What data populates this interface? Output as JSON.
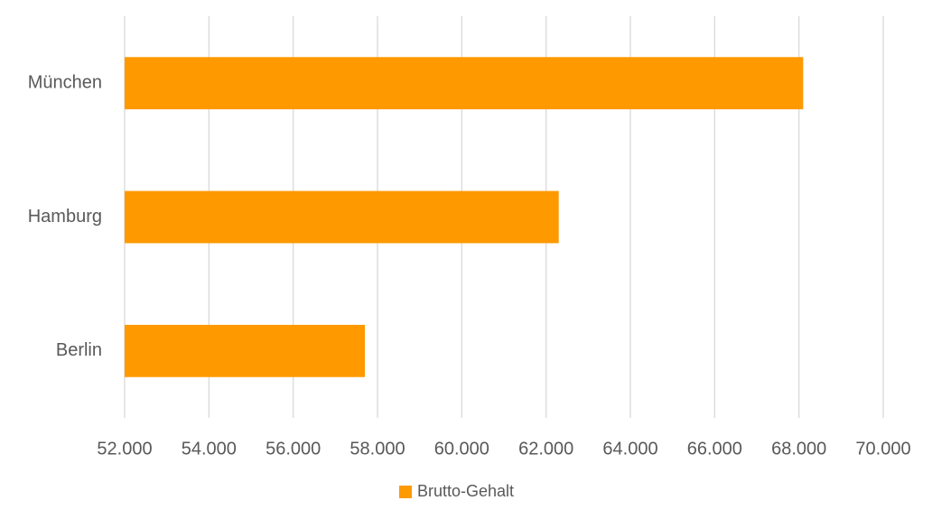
{
  "chart_data": {
    "type": "bar",
    "orientation": "horizontal",
    "categories": [
      "München",
      "Hamburg",
      "Berlin"
    ],
    "series": [
      {
        "name": "Brutto-Gehalt",
        "color": "#ff9900",
        "values": [
          68100,
          62300,
          57700
        ]
      }
    ],
    "xlim": [
      52000,
      70000
    ],
    "xticks": [
      {
        "value": 52000,
        "label": "52.000"
      },
      {
        "value": 54000,
        "label": "54.000"
      },
      {
        "value": 56000,
        "label": "56.000"
      },
      {
        "value": 58000,
        "label": "58.000"
      },
      {
        "value": 60000,
        "label": "60.000"
      },
      {
        "value": 62000,
        "label": "62.000"
      },
      {
        "value": 64000,
        "label": "64.000"
      },
      {
        "value": 66000,
        "label": "66.000"
      },
      {
        "value": 68000,
        "label": "68.000"
      },
      {
        "value": 70000,
        "label": "70.000"
      }
    ],
    "grid": true,
    "legend": "bottom"
  }
}
